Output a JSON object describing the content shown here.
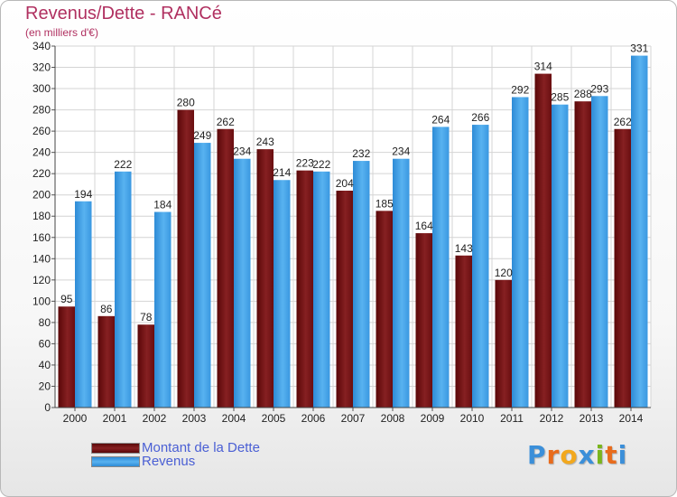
{
  "title": "Revenus/Dette - RANCé",
  "subtitle": "(en milliers d'€)",
  "logo": {
    "text": "Proxiti",
    "colors": [
      "#3b8fd9",
      "#e86b1c",
      "#f2a81d",
      "#3b8fd9",
      "#7ab51d",
      "#e86b1c",
      "#3b8fd9"
    ]
  },
  "legend": [
    {
      "label": "Montant de la Dette",
      "color": "#7b1416"
    },
    {
      "label": "Revenus",
      "color": "#3d9ee6"
    }
  ],
  "chart_data": {
    "type": "bar",
    "categories": [
      "2000",
      "2001",
      "2002",
      "2003",
      "2004",
      "2005",
      "2006",
      "2007",
      "2008",
      "2009",
      "2010",
      "2011",
      "2012",
      "2013",
      "2014"
    ],
    "series": [
      {
        "name": "Montant de la Dette",
        "color": "#7b1416",
        "values": [
          95,
          86,
          78,
          280,
          262,
          243,
          223,
          204,
          185,
          164,
          143,
          120,
          314,
          288,
          262
        ]
      },
      {
        "name": "Revenus",
        "color": "#3d9ee6",
        "values": [
          194,
          222,
          184,
          249,
          234,
          214,
          222,
          232,
          234,
          264,
          266,
          292,
          285,
          293,
          331
        ]
      }
    ],
    "ylim": [
      0,
      340
    ],
    "ytick_step": 20,
    "grid": true,
    "legend_position": "bottom-left"
  }
}
